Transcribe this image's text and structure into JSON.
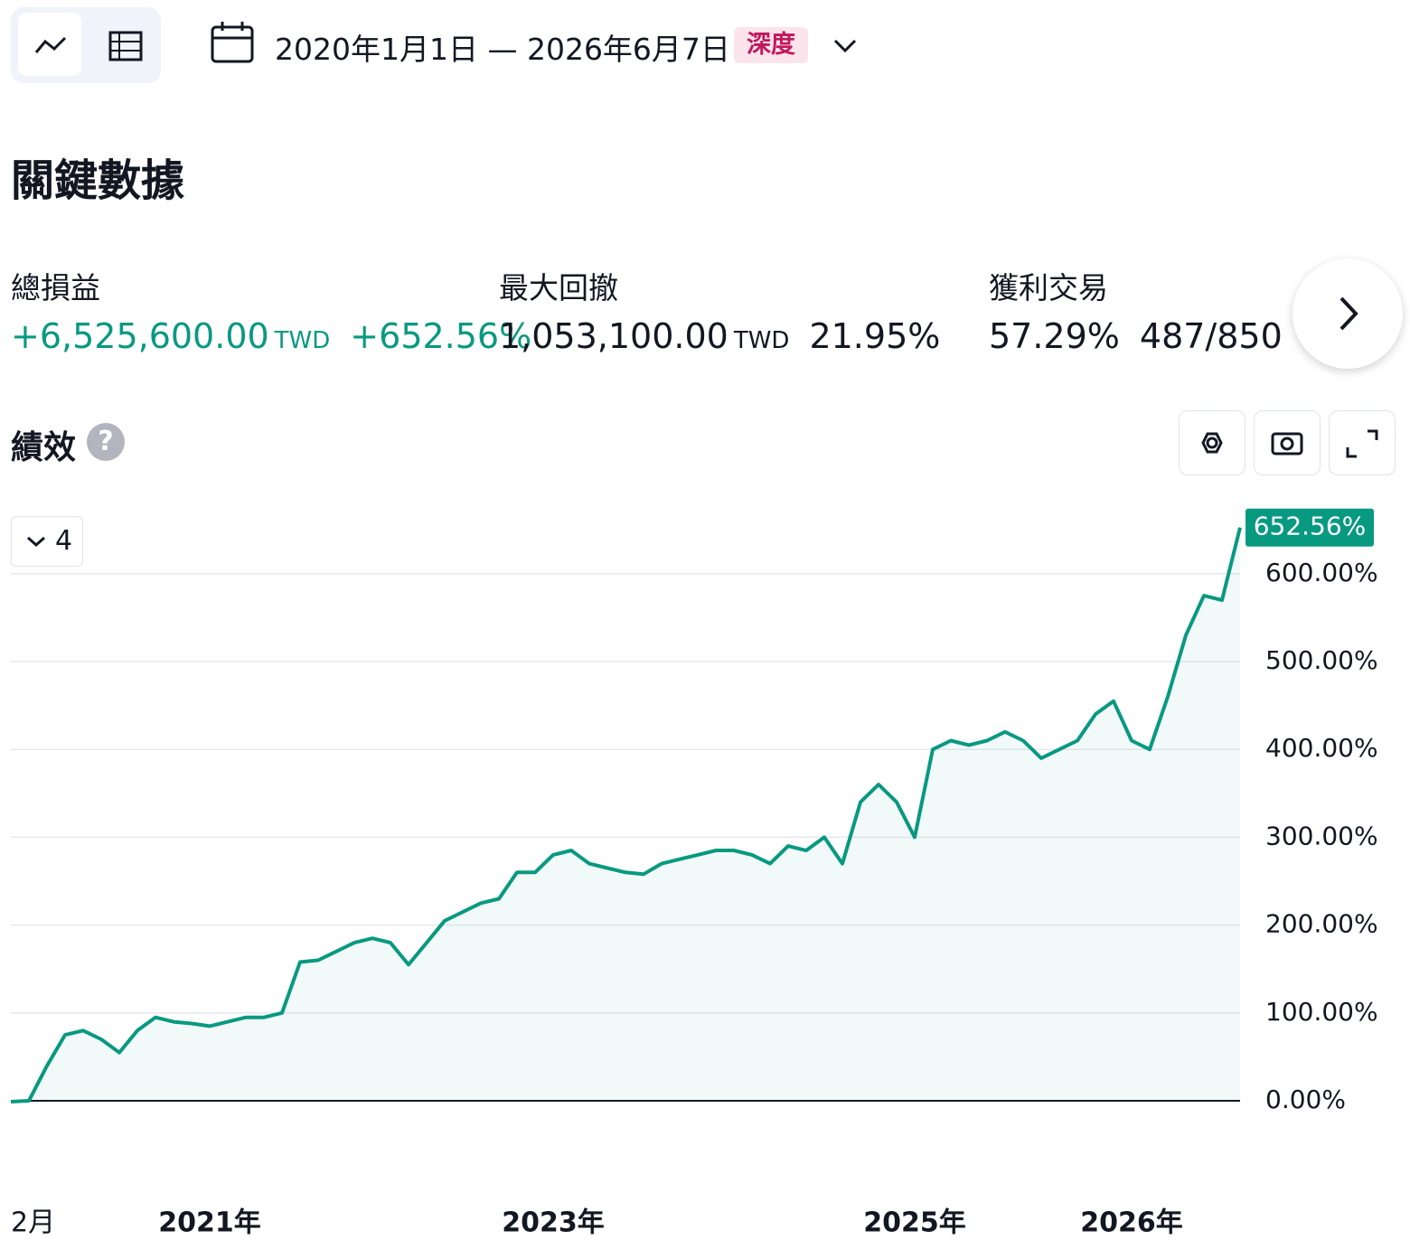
{
  "toolbar": {
    "date_range": "2020年1月1日 — 2026年6月7日",
    "badge": "深度"
  },
  "section_title": "關鍵數據",
  "metrics": [
    {
      "label": "總損益",
      "value": "+6,525,600.00",
      "unit": "TWD",
      "extra": "+652.56%"
    },
    {
      "label": "最大回撤",
      "value": "1,053,100.00",
      "unit": "TWD",
      "extra": "21.95%"
    },
    {
      "label": "獲利交易",
      "value": "57.29%",
      "extra": "487/850"
    }
  ],
  "performance": {
    "title": "績效",
    "series_count": "4"
  },
  "chart_data": {
    "type": "line",
    "categories": [
      null,
      "2月",
      null,
      null,
      null,
      null,
      null,
      null,
      null,
      null,
      null,
      "2021年",
      null,
      null,
      null,
      null,
      null,
      null,
      null,
      null,
      null,
      null,
      null,
      null,
      null,
      null,
      null,
      null,
      null,
      null,
      "2023年",
      null,
      null,
      null,
      null,
      null,
      null,
      null,
      null,
      null,
      null,
      null,
      null,
      null,
      null,
      null,
      null,
      null,
      null,
      null,
      "2025年",
      null,
      null,
      null,
      null,
      null,
      null,
      null,
      null,
      null,
      null,
      null,
      "2026年",
      null,
      null,
      null,
      null,
      null,
      null
    ],
    "series": [
      {
        "name": "績效",
        "color": "#089981",
        "last_value_label": "652.56%",
        "values": [
          -1,
          0,
          40,
          75,
          80,
          70,
          55,
          80,
          95,
          90,
          88,
          85,
          90,
          95,
          95,
          100,
          158,
          160,
          170,
          180,
          185,
          180,
          155,
          180,
          205,
          215,
          225,
          230,
          260,
          260,
          280,
          285,
          270,
          265,
          260,
          258,
          270,
          275,
          280,
          285,
          285,
          280,
          270,
          290,
          285,
          300,
          270,
          340,
          360,
          340,
          300,
          400,
          410,
          405,
          410,
          420,
          410,
          390,
          400,
          410,
          440,
          455,
          410,
          400,
          460,
          530,
          575,
          570,
          652.56
        ]
      }
    ],
    "ylim": [
      -80,
      660
    ],
    "yticks": [
      {
        "value": 0,
        "label": "0.00%"
      },
      {
        "value": 100,
        "label": "100.00%"
      },
      {
        "value": 200,
        "label": "200.00%"
      },
      {
        "value": 300,
        "label": "300.00%"
      },
      {
        "value": 400,
        "label": "400.00%"
      },
      {
        "value": 500,
        "label": "500.00%"
      },
      {
        "value": 600,
        "label": "600.00%"
      }
    ],
    "grid": true
  }
}
